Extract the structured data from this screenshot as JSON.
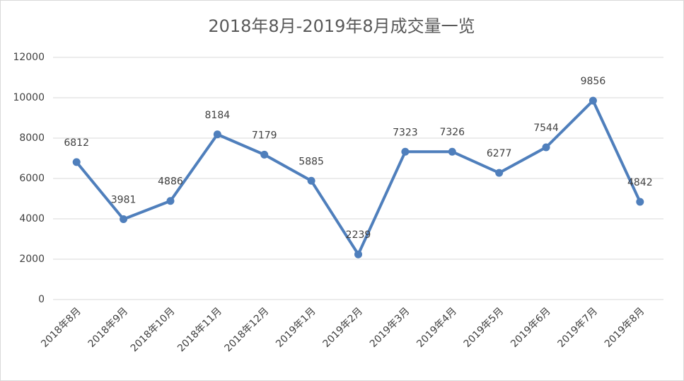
{
  "chart_data": {
    "type": "line",
    "title": "2018年8月-2019年8月成交量一览",
    "categories": [
      "2018年8月",
      "2018年9月",
      "2018年10月",
      "2018年11月",
      "2018年12月",
      "2019年1月",
      "2019年2月",
      "2019年3月",
      "2019年4月",
      "2019年5月",
      "2019年6月",
      "2019年7月",
      "2019年8月"
    ],
    "series": [
      {
        "name": "成交量",
        "color": "#4f7fbc",
        "values": [
          6812,
          3981,
          4886,
          8184,
          7179,
          5885,
          2239,
          7323,
          7326,
          6277,
          7544,
          9856,
          4842
        ]
      }
    ],
    "ylim": [
      0,
      12000
    ],
    "yticks": [
      0,
      2000,
      4000,
      6000,
      8000,
      10000,
      12000
    ],
    "grid": true
  }
}
